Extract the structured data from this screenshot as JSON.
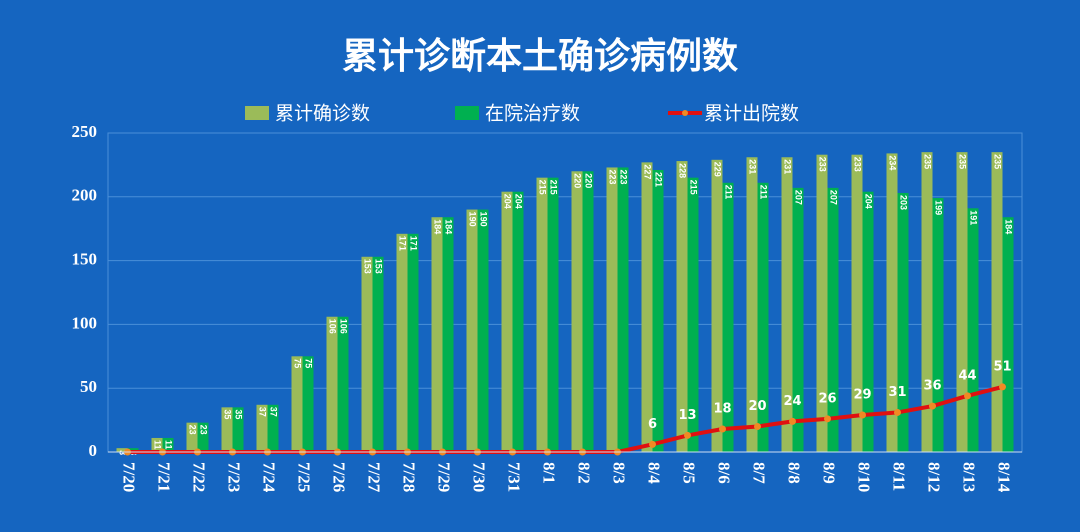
{
  "chart_data": {
    "type": "bar",
    "title": "累计诊断本土确诊病例数",
    "categories": [
      "7/20",
      "7/21",
      "7/22",
      "7/23",
      "7/24",
      "7/25",
      "7/26",
      "7/27",
      "7/28",
      "7/29",
      "7/30",
      "7/31",
      "8/1",
      "8/2",
      "8/3",
      "8/4",
      "8/5",
      "8/6",
      "8/7",
      "8/8",
      "8/9",
      "8/10",
      "8/11",
      "8/12",
      "8/13",
      "8/14"
    ],
    "series": [
      {
        "name": "累计确诊数",
        "type": "bar",
        "color": "#9bbb59",
        "values": [
          3,
          11,
          23,
          35,
          37,
          75,
          106,
          153,
          171,
          184,
          190,
          204,
          215,
          220,
          223,
          227,
          228,
          229,
          231,
          231,
          233,
          233,
          234,
          235,
          235,
          235
        ]
      },
      {
        "name": "在院治疗数",
        "type": "bar",
        "color": "#00b050",
        "values": [
          3,
          11,
          23,
          35,
          37,
          75,
          106,
          153,
          171,
          184,
          190,
          204,
          215,
          220,
          223,
          221,
          215,
          211,
          211,
          207,
          207,
          204,
          203,
          199,
          191,
          184
        ]
      },
      {
        "name": "累计出院数",
        "type": "line",
        "color": "#e01010",
        "marker_color": "#f08a24",
        "values": [
          0,
          0,
          0,
          0,
          0,
          0,
          0,
          0,
          0,
          0,
          0,
          0,
          0,
          0,
          0,
          6,
          13,
          18,
          20,
          24,
          26,
          29,
          31,
          36,
          44,
          51
        ]
      }
    ],
    "ylim": [
      0,
      250
    ],
    "yticks": [
      0,
      50,
      100,
      150,
      200,
      250
    ],
    "grid": true
  }
}
